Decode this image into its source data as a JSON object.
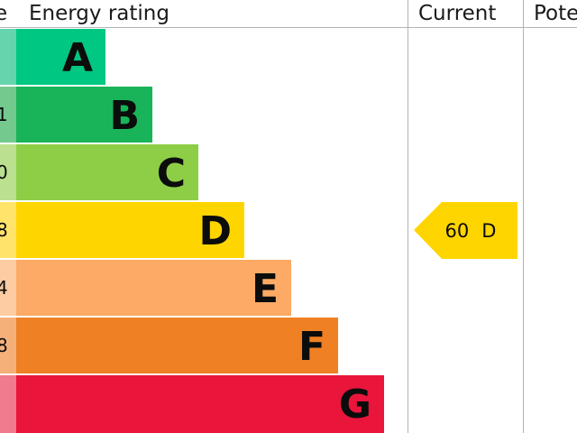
{
  "header": {
    "score": "e",
    "rating": "Energy rating",
    "current": "Current",
    "potential": "Pote"
  },
  "ratings": [
    {
      "letter": "A",
      "color": "#00c781",
      "tint": "#66d4ad"
    },
    {
      "score": "1",
      "letter": "B",
      "color": "#19b459",
      "tint": "#74c98f"
    },
    {
      "score": "0",
      "letter": "C",
      "color": "#8dce46",
      "tint": "#bbe08f"
    },
    {
      "score": "8",
      "letter": "D",
      "color": "#ffd500",
      "tint": "#ffe36a"
    },
    {
      "score": "4",
      "letter": "E",
      "color": "#fcaa65",
      "tint": "#fdcca2"
    },
    {
      "score": "8",
      "letter": "F",
      "color": "#ef8023",
      "tint": "#f5b07a"
    },
    {
      "letter": "G",
      "color": "#e9153b",
      "tint": "#f07a8e"
    }
  ],
  "current": {
    "score": 60,
    "rating": "D",
    "row": "D"
  }
}
